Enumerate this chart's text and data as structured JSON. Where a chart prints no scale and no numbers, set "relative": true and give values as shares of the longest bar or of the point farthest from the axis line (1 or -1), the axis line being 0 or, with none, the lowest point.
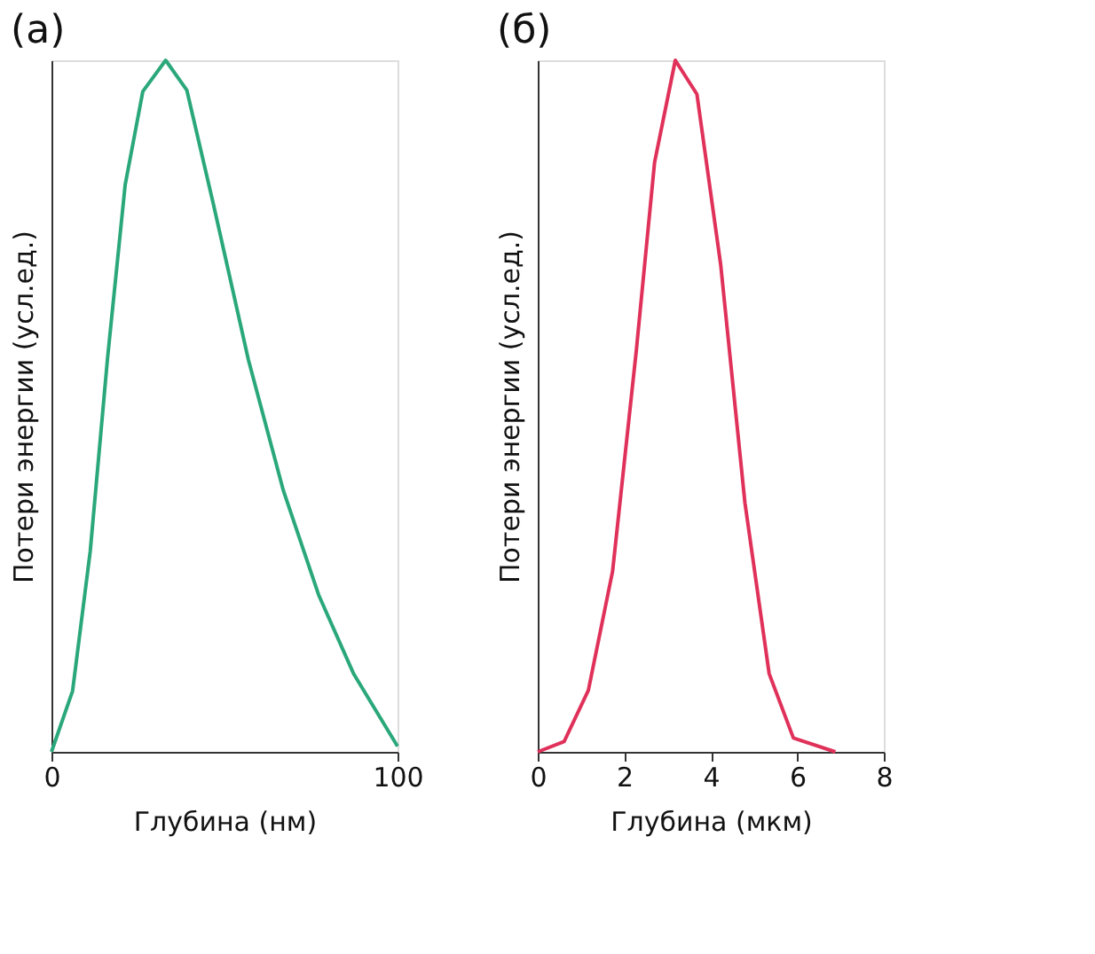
{
  "chart_data": [
    {
      "type": "line",
      "title": "(a)",
      "xlabel": "Глубина (нм)",
      "ylabel": "Потери энергии (усл.ед.)",
      "relative": true,
      "tick_labels": "x",
      "grid": false,
      "legend": false,
      "marker": "none",
      "line_style": "solid",
      "xlim": [
        0,
        100
      ],
      "xticks": [
        0,
        100
      ],
      "x": [
        0,
        6.1,
        11.2,
        16.2,
        21.3,
        26.4,
        33,
        39.1,
        46.7,
        56.9,
        67,
        77.2,
        87.3,
        100
      ],
      "series": [
        {
          "color": "#2aa87a",
          "values": [
            0,
            0.088,
            0.29,
            0.569,
            0.82,
            0.955,
            1,
            0.957,
            0.794,
            0.567,
            0.378,
            0.227,
            0.113,
            0.008
          ]
        }
      ]
    },
    {
      "type": "line",
      "title": "(б)",
      "xlabel": "Глубина (мкм)",
      "ylabel": "Потери энергии (усл.ед.)",
      "relative": true,
      "tick_labels": "x",
      "grid": false,
      "legend": false,
      "marker": "none",
      "line_style": "solid",
      "xlim": [
        0,
        8
      ],
      "xticks": [
        0,
        2,
        4,
        6,
        8
      ],
      "x": [
        0,
        0.61,
        1.17,
        1.73,
        2.28,
        2.7,
        3.18,
        3.68,
        4.23,
        4.79,
        5.35,
        5.91,
        6.88
      ],
      "series": [
        {
          "color": "#e0315a",
          "values": [
            0,
            0.015,
            0.089,
            0.261,
            0.581,
            0.852,
            1,
            0.951,
            0.704,
            0.36,
            0.113,
            0.02,
            0
          ]
        }
      ]
    }
  ]
}
